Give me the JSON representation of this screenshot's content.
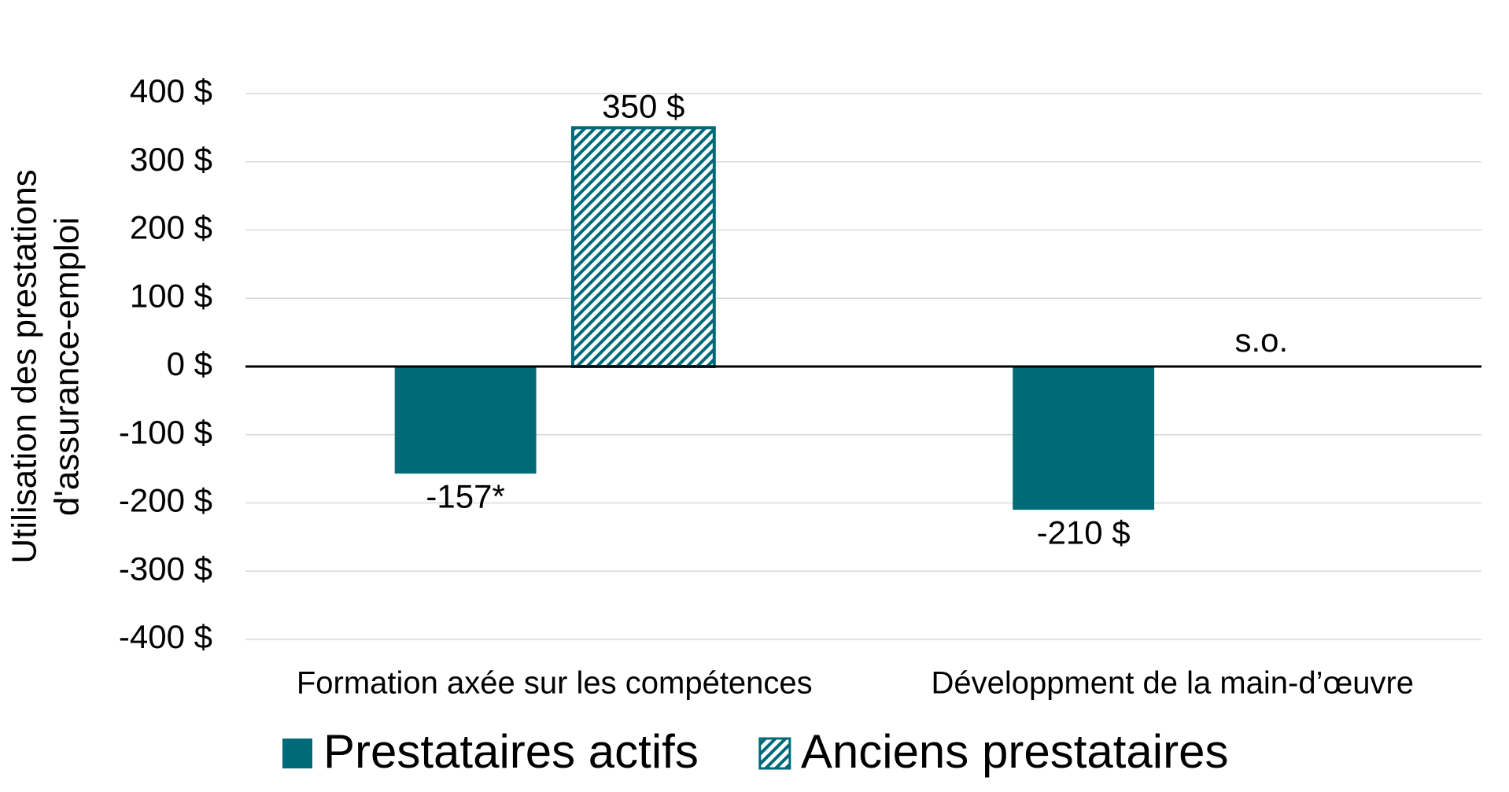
{
  "chart_data": {
    "type": "bar",
    "ylabel": [
      "Utilisation des  prestations",
      "d'assurance-emploi"
    ],
    "categories": [
      "Formation axée sur les compétences",
      "Développment de la main-d’œuvre"
    ],
    "series": [
      {
        "name": "Prestataires actifs",
        "color": "#006a78",
        "values": [
          -157,
          -210
        ],
        "value_labels": [
          "-157*",
          "-210 $"
        ]
      },
      {
        "name": "Anciens prestataires",
        "color": "#006a78",
        "pattern": "diagonal-hatch",
        "values": [
          350,
          null
        ],
        "value_labels": [
          "350 $",
          "s.o."
        ]
      }
    ],
    "ylim": [
      -400,
      400
    ],
    "yticks": [
      {
        "value": -400,
        "label": "-400 $"
      },
      {
        "value": -300,
        "label": "-300 $"
      },
      {
        "value": -200,
        "label": "-200 $"
      },
      {
        "value": -100,
        "label": "-100 $"
      },
      {
        "value": 0,
        "label": "0 $"
      },
      {
        "value": 100,
        "label": "100 $"
      },
      {
        "value": 200,
        "label": "200 $"
      },
      {
        "value": 300,
        "label": "300 $"
      },
      {
        "value": 400,
        "label": "400 $"
      }
    ],
    "grid": true,
    "legend": "bottom"
  }
}
